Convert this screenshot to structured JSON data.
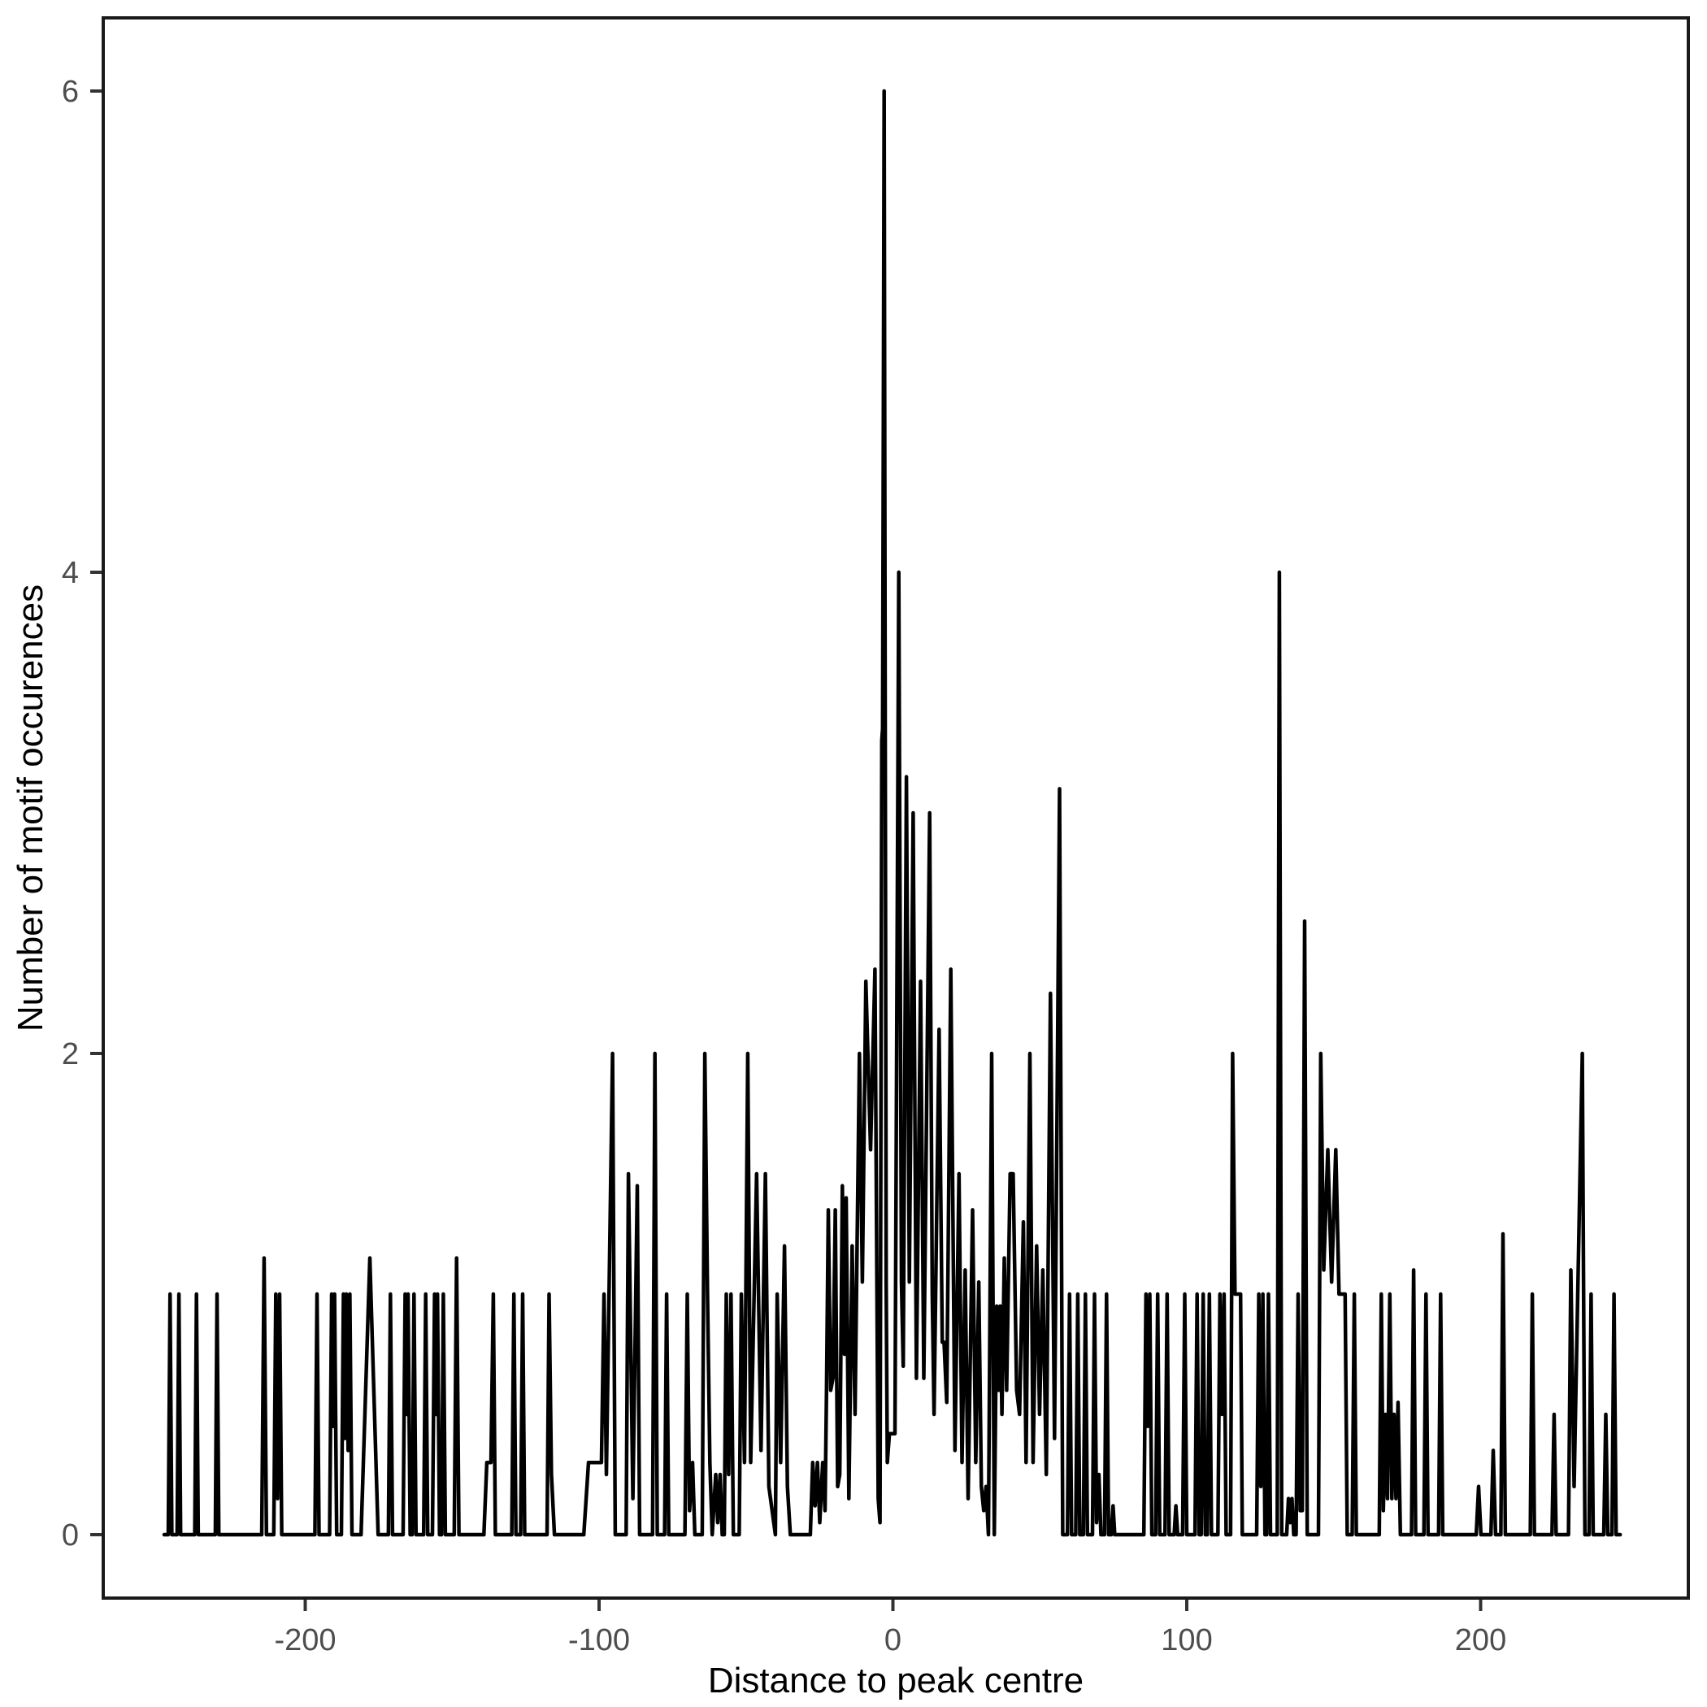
{
  "chart_data": {
    "type": "line",
    "title": "",
    "xlabel": "Distance to peak centre",
    "ylabel": "Number of motif occurences",
    "x_ticks": [
      -200,
      -100,
      0,
      100,
      200
    ],
    "y_ticks": [
      0,
      2,
      4,
      6
    ],
    "xlim": [
      -268,
      271
    ],
    "ylim": [
      -0.26,
      6.3
    ],
    "grid": false,
    "legend": "none",
    "line_color": "#000000",
    "axis_border_color": "#1a1a1a",
    "tick_color": "#333333",
    "tick_label_color": "#4d4d4d",
    "background_color": "#ffffff",
    "points": [
      [
        -248,
        0
      ],
      [
        -246.6,
        0
      ],
      [
        -246,
        1
      ],
      [
        -245.4,
        0
      ],
      [
        -243.6,
        0
      ],
      [
        -243,
        1
      ],
      [
        -242.4,
        0
      ],
      [
        -237.6,
        0
      ],
      [
        -237,
        1
      ],
      [
        -236.4,
        0
      ],
      [
        -230.6,
        0
      ],
      [
        -230,
        1
      ],
      [
        -229.4,
        0
      ],
      [
        -214.8,
        0
      ],
      [
        -214,
        1.15
      ],
      [
        -213.2,
        0
      ],
      [
        -210.7,
        0
      ],
      [
        -210,
        1
      ],
      [
        -209.4,
        0.15
      ],
      [
        -208.7,
        1
      ],
      [
        -208,
        0
      ],
      [
        -196.7,
        0
      ],
      [
        -196,
        1
      ],
      [
        -195.3,
        0
      ],
      [
        -191.7,
        0
      ],
      [
        -191,
        1
      ],
      [
        -190.5,
        0.45
      ],
      [
        -190,
        1
      ],
      [
        -189.3,
        0
      ],
      [
        -187.7,
        0
      ],
      [
        -187,
        1
      ],
      [
        -186.5,
        0.4
      ],
      [
        -186,
        1
      ],
      [
        -185.4,
        0.35
      ],
      [
        -184.8,
        1
      ],
      [
        -184.1,
        0
      ],
      [
        -181,
        0
      ],
      [
        -178,
        1.15
      ],
      [
        -175.2,
        0
      ],
      [
        -171.7,
        0
      ],
      [
        -171,
        1
      ],
      [
        -170.3,
        0
      ],
      [
        -166.7,
        0
      ],
      [
        -166,
        1
      ],
      [
        -165.5,
        0.5
      ],
      [
        -165,
        1
      ],
      [
        -164.3,
        0
      ],
      [
        -163.6,
        0
      ],
      [
        -163,
        1
      ],
      [
        -162.3,
        0
      ],
      [
        -159.7,
        0
      ],
      [
        -159,
        1
      ],
      [
        -158.3,
        0
      ],
      [
        -156.7,
        0
      ],
      [
        -156,
        1
      ],
      [
        -155.5,
        0.5
      ],
      [
        -155,
        1
      ],
      [
        -154.3,
        0
      ],
      [
        -153.6,
        0
      ],
      [
        -153,
        1
      ],
      [
        -152.3,
        0
      ],
      [
        -149.3,
        0
      ],
      [
        -148.5,
        1.15
      ],
      [
        -147.7,
        0
      ],
      [
        -139.2,
        0
      ],
      [
        -138.2,
        0.3
      ],
      [
        -136.8,
        0.3
      ],
      [
        -136,
        1
      ],
      [
        -135.3,
        0
      ],
      [
        -129.7,
        0
      ],
      [
        -129,
        1
      ],
      [
        -128.3,
        0
      ],
      [
        -126.7,
        0
      ],
      [
        -126,
        1
      ],
      [
        -125.3,
        0
      ],
      [
        -117.7,
        0
      ],
      [
        -117,
        1
      ],
      [
        -116.2,
        0.25
      ],
      [
        -115.2,
        0
      ],
      [
        -105.2,
        0
      ],
      [
        -103.6,
        0.3
      ],
      [
        -99.2,
        0.3
      ],
      [
        -98.3,
        1
      ],
      [
        -97.5,
        0.25
      ],
      [
        -95.4,
        2
      ],
      [
        -94.5,
        0
      ],
      [
        -90.8,
        0
      ],
      [
        -90,
        1.5
      ],
      [
        -88.5,
        0.15
      ],
      [
        -87,
        1.45
      ],
      [
        -86.2,
        0
      ],
      [
        -81.8,
        0
      ],
      [
        -81,
        2
      ],
      [
        -80.2,
        0
      ],
      [
        -77.7,
        0
      ],
      [
        -77,
        1
      ],
      [
        -76.3,
        0
      ],
      [
        -70.8,
        0
      ],
      [
        -70,
        1
      ],
      [
        -69.2,
        0.1
      ],
      [
        -68.2,
        0.3
      ],
      [
        -67.4,
        0
      ],
      [
        -64.9,
        0
      ],
      [
        -64,
        2
      ],
      [
        -63.1,
        1
      ],
      [
        -62.3,
        0.3
      ],
      [
        -61.5,
        0
      ],
      [
        -60.3,
        0.25
      ],
      [
        -59.6,
        0.05
      ],
      [
        -58.8,
        0.25
      ],
      [
        -58.1,
        0
      ],
      [
        -57.4,
        0
      ],
      [
        -56.7,
        1
      ],
      [
        -55.9,
        0.25
      ],
      [
        -55.1,
        1
      ],
      [
        -54.3,
        0
      ],
      [
        -52.3,
        0
      ],
      [
        -51.6,
        1
      ],
      [
        -50.5,
        0.3
      ],
      [
        -49.4,
        2
      ],
      [
        -48.4,
        0.3
      ],
      [
        -46.4,
        1.5
      ],
      [
        -44.9,
        0.35
      ],
      [
        -43.4,
        1.5
      ],
      [
        -42.2,
        0.2
      ],
      [
        -40,
        0
      ],
      [
        -39.4,
        1
      ],
      [
        -38.2,
        0.3
      ],
      [
        -36.9,
        1.2
      ],
      [
        -35.9,
        0.2
      ],
      [
        -34.9,
        0
      ],
      [
        -28.1,
        0
      ],
      [
        -27.3,
        0.3
      ],
      [
        -26.5,
        0.12
      ],
      [
        -25.7,
        0.3
      ],
      [
        -24.9,
        0.05
      ],
      [
        -23.9,
        0.3
      ],
      [
        -23.1,
        0.1
      ],
      [
        -22.6,
        0.6
      ],
      [
        -22,
        1.35
      ],
      [
        -21.2,
        0.6
      ],
      [
        -20.4,
        0.65
      ],
      [
        -19.6,
        1.35
      ],
      [
        -18.8,
        0.2
      ],
      [
        -18.1,
        0.25
      ],
      [
        -17.2,
        1.45
      ],
      [
        -16.5,
        0.75
      ],
      [
        -15.9,
        1.4
      ],
      [
        -15,
        0.15
      ],
      [
        -13.9,
        1.2
      ],
      [
        -12.9,
        0.5
      ],
      [
        -11.4,
        2
      ],
      [
        -10.4,
        1.05
      ],
      [
        -9.2,
        2.3
      ],
      [
        -7.6,
        1.6
      ],
      [
        -6.1,
        2.35
      ],
      [
        -5,
        0.15
      ],
      [
        -4.4,
        0.05
      ],
      [
        -3.8,
        3.3
      ],
      [
        -3.5,
        3.35
      ],
      [
        -3,
        6
      ],
      [
        -2.3,
        1.05
      ],
      [
        -1.9,
        0.3
      ],
      [
        -1.2,
        0.42
      ],
      [
        0.7,
        0.42
      ],
      [
        2,
        4
      ],
      [
        2.9,
        1.05
      ],
      [
        3.5,
        0.7
      ],
      [
        4.6,
        3.15
      ],
      [
        5.6,
        1.05
      ],
      [
        6.9,
        3.0
      ],
      [
        8,
        0.65
      ],
      [
        9.4,
        2.3
      ],
      [
        10.5,
        0.65
      ],
      [
        12.5,
        3.0
      ],
      [
        13.4,
        1.0
      ],
      [
        14,
        0.5
      ],
      [
        15.7,
        2.1
      ],
      [
        16.8,
        0.8
      ],
      [
        17.4,
        0.8
      ],
      [
        18.3,
        0.55
      ],
      [
        19.7,
        2.35
      ],
      [
        21.1,
        0.35
      ],
      [
        22.5,
        1.5
      ],
      [
        23.5,
        0.3
      ],
      [
        24.6,
        1.1
      ],
      [
        25.6,
        0.15
      ],
      [
        27.1,
        1.35
      ],
      [
        28.2,
        0.3
      ],
      [
        29.2,
        1.05
      ],
      [
        30.1,
        0.2
      ],
      [
        30.9,
        0.1
      ],
      [
        31.7,
        0.2
      ],
      [
        32.5,
        0
      ],
      [
        33.6,
        2
      ],
      [
        34.5,
        0
      ],
      [
        35.3,
        0.95
      ],
      [
        35.9,
        0.6
      ],
      [
        36.5,
        0.95
      ],
      [
        37.1,
        0.5
      ],
      [
        37.9,
        1.15
      ],
      [
        38.7,
        0.6
      ],
      [
        39.9,
        1.5
      ],
      [
        40.9,
        1.5
      ],
      [
        42.1,
        0.6
      ],
      [
        43.1,
        0.5
      ],
      [
        44.4,
        1.3
      ],
      [
        45.3,
        0.3
      ],
      [
        46.6,
        2
      ],
      [
        47.7,
        0.3
      ],
      [
        48.9,
        1.2
      ],
      [
        49.9,
        0.5
      ],
      [
        51,
        1.1
      ],
      [
        52.2,
        0.25
      ],
      [
        53.6,
        2.25
      ],
      [
        55,
        0.4
      ],
      [
        56.7,
        3.1
      ],
      [
        57.8,
        0
      ],
      [
        59.4,
        0
      ],
      [
        60.1,
        1
      ],
      [
        60.8,
        0
      ],
      [
        62.2,
        0
      ],
      [
        62.9,
        1
      ],
      [
        63.6,
        0
      ],
      [
        64.8,
        0
      ],
      [
        65.5,
        1
      ],
      [
        66.2,
        0
      ],
      [
        67.9,
        0
      ],
      [
        68.6,
        1
      ],
      [
        69.3,
        0.05
      ],
      [
        70.1,
        0.25
      ],
      [
        70.8,
        0
      ],
      [
        72,
        0
      ],
      [
        72.7,
        1
      ],
      [
        73.4,
        0
      ],
      [
        74.3,
        0
      ],
      [
        74.9,
        0.12
      ],
      [
        75.5,
        0
      ],
      [
        85.4,
        0
      ],
      [
        86.1,
        1
      ],
      [
        86.7,
        0.45
      ],
      [
        87.4,
        1
      ],
      [
        88.1,
        0
      ],
      [
        89.4,
        0
      ],
      [
        90.1,
        1
      ],
      [
        90.8,
        0
      ],
      [
        92.6,
        0
      ],
      [
        93.3,
        1
      ],
      [
        94,
        0
      ],
      [
        95.7,
        0
      ],
      [
        96.3,
        0.12
      ],
      [
        96.9,
        0
      ],
      [
        98.6,
        0
      ],
      [
        99.3,
        1
      ],
      [
        100,
        0
      ],
      [
        102.8,
        0
      ],
      [
        103.5,
        1
      ],
      [
        104.2,
        0
      ],
      [
        104.9,
        0
      ],
      [
        105.6,
        1
      ],
      [
        106.3,
        0
      ],
      [
        107,
        0
      ],
      [
        107.7,
        1
      ],
      [
        108.4,
        0
      ],
      [
        110.6,
        0
      ],
      [
        111.3,
        1
      ],
      [
        112,
        0.5
      ],
      [
        112.7,
        1
      ],
      [
        113.4,
        0
      ],
      [
        114.9,
        0
      ],
      [
        115.6,
        2
      ],
      [
        116.4,
        1
      ],
      [
        118.3,
        1
      ],
      [
        118.9,
        0
      ],
      [
        123.8,
        0
      ],
      [
        124.5,
        1
      ],
      [
        125.2,
        0.2
      ],
      [
        125.9,
        1
      ],
      [
        126.6,
        0
      ],
      [
        127.2,
        0
      ],
      [
        127.8,
        1
      ],
      [
        128.5,
        0
      ],
      [
        130.8,
        0
      ],
      [
        131.5,
        4
      ],
      [
        132.3,
        0
      ],
      [
        134,
        0
      ],
      [
        134.6,
        0.15
      ],
      [
        135.2,
        0.05
      ],
      [
        135.8,
        0.15
      ],
      [
        136.4,
        0
      ],
      [
        137.2,
        0
      ],
      [
        137.9,
        1
      ],
      [
        138.6,
        0.1
      ],
      [
        139.3,
        0.1
      ],
      [
        140.1,
        2.55
      ],
      [
        141,
        0
      ],
      [
        144.8,
        0
      ],
      [
        145.6,
        2
      ],
      [
        146.6,
        1.1
      ],
      [
        148,
        1.6
      ],
      [
        149.3,
        1.05
      ],
      [
        150.7,
        1.6
      ],
      [
        151.8,
        1
      ],
      [
        153.9,
        1
      ],
      [
        154.6,
        0
      ],
      [
        156.3,
        0
      ],
      [
        157,
        1
      ],
      [
        157.7,
        0
      ],
      [
        165.5,
        0
      ],
      [
        166.2,
        1
      ],
      [
        166.9,
        0.1
      ],
      [
        167.6,
        0.5
      ],
      [
        168.3,
        0.15
      ],
      [
        169.1,
        1
      ],
      [
        169.8,
        0.15
      ],
      [
        170.5,
        0.5
      ],
      [
        171.2,
        0.15
      ],
      [
        171.9,
        0.55
      ],
      [
        172.7,
        0
      ],
      [
        176.5,
        0
      ],
      [
        177.2,
        1.1
      ],
      [
        177.9,
        0
      ],
      [
        180.7,
        0
      ],
      [
        181.4,
        1
      ],
      [
        182.1,
        0
      ],
      [
        185.7,
        0
      ],
      [
        186.4,
        1
      ],
      [
        187.1,
        0
      ],
      [
        198.5,
        0
      ],
      [
        199.3,
        0.2
      ],
      [
        200.1,
        0
      ],
      [
        203.5,
        0
      ],
      [
        204.3,
        0.35
      ],
      [
        205.1,
        0
      ],
      [
        206.9,
        0
      ],
      [
        207.6,
        1.25
      ],
      [
        208.4,
        0
      ],
      [
        216.9,
        0
      ],
      [
        217.6,
        1
      ],
      [
        218.3,
        0
      ],
      [
        224.3,
        0
      ],
      [
        225,
        0.5
      ],
      [
        225.7,
        0
      ],
      [
        229.9,
        0
      ],
      [
        230.7,
        1.1
      ],
      [
        231.8,
        0.2
      ],
      [
        234.6,
        2
      ],
      [
        235.5,
        0
      ],
      [
        236.9,
        0
      ],
      [
        237.6,
        1
      ],
      [
        238.3,
        0
      ],
      [
        241.9,
        0
      ],
      [
        242.6,
        0.5
      ],
      [
        243.3,
        0
      ],
      [
        244.7,
        0
      ],
      [
        245.4,
        1
      ],
      [
        246.1,
        0
      ],
      [
        247.5,
        0
      ]
    ]
  }
}
